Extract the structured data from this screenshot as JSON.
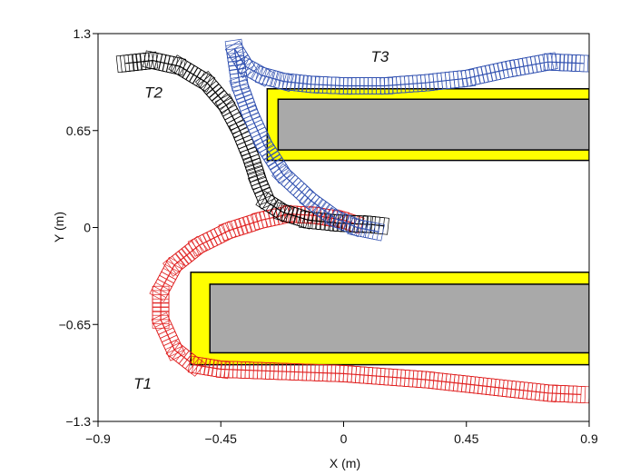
{
  "chart_data": {
    "type": "scatter",
    "title": "",
    "xlabel": "X (m)",
    "ylabel": "Y (m)",
    "xlim": [
      -0.9,
      0.9
    ],
    "ylim": [
      -1.3,
      1.3
    ],
    "xticks": [
      -0.9,
      -0.45,
      0,
      0.45,
      0.9
    ],
    "xtick_labels": [
      "−0.9",
      "−0.45",
      "0",
      "0.45",
      "0.9"
    ],
    "yticks": [
      1.3,
      0.65,
      0,
      -0.65,
      -1.3
    ],
    "ytick_labels": [
      "1.3",
      "0.65",
      "0",
      "−0.65",
      "−1.3"
    ],
    "grid": false,
    "obstacles": [
      {
        "name": "upper-obstacle",
        "outer": {
          "x": [
            -0.28,
            0.9
          ],
          "y": [
            0.45,
            0.93
          ]
        },
        "inner": {
          "x": [
            -0.24,
            0.9
          ],
          "y": [
            0.52,
            0.86
          ]
        }
      },
      {
        "name": "lower-obstacle",
        "outer": {
          "x": [
            -0.56,
            0.9
          ],
          "y": [
            -0.92,
            -0.3
          ]
        },
        "inner": {
          "x": [
            -0.49,
            0.9
          ],
          "y": [
            -0.84,
            -0.38
          ]
        }
      }
    ],
    "colors": {
      "obstacle_outer": "#ffff00",
      "obstacle_inner": "#a9a9a9",
      "outline": "#000000"
    },
    "series": [
      {
        "name": "T1",
        "label_at": {
          "x": -0.77,
          "y": -1.08
        },
        "color": "#e02020",
        "x": [
          0.87,
          0.75,
          0.6,
          0.45,
          0.3,
          0.15,
          0.0,
          -0.15,
          -0.3,
          -0.45,
          -0.55,
          -0.62,
          -0.67,
          -0.67,
          -0.62,
          -0.53,
          -0.42,
          -0.3,
          -0.2,
          -0.1,
          0.0,
          0.05
        ],
        "y": [
          -1.12,
          -1.11,
          -1.08,
          -1.05,
          -1.02,
          -1.0,
          -0.98,
          -0.97,
          -0.96,
          -0.95,
          -0.92,
          -0.82,
          -0.62,
          -0.42,
          -0.25,
          -0.12,
          -0.02,
          0.05,
          0.09,
          0.08,
          0.05,
          0.02
        ]
      },
      {
        "name": "T2",
        "label_at": {
          "x": -0.73,
          "y": 0.87
        },
        "color": "#000000",
        "x": [
          -0.8,
          -0.7,
          -0.6,
          -0.5,
          -0.43,
          -0.38,
          -0.34,
          -0.31,
          -0.28,
          -0.22,
          -0.13,
          -0.02,
          0.1,
          0.15
        ],
        "y": [
          1.1,
          1.12,
          1.08,
          0.97,
          0.82,
          0.65,
          0.47,
          0.3,
          0.17,
          0.1,
          0.05,
          0.03,
          0.02,
          0.01
        ]
      },
      {
        "name": "T3",
        "label_at": {
          "x": 0.1,
          "y": 1.11
        },
        "color": "#3050b0",
        "x": [
          0.88,
          0.75,
          0.6,
          0.45,
          0.3,
          0.15,
          0.0,
          -0.12,
          -0.22,
          -0.3,
          -0.36,
          -0.4,
          -0.38,
          -0.34,
          -0.29,
          -0.22,
          -0.12,
          -0.03,
          0.05,
          0.13
        ],
        "y": [
          1.1,
          1.11,
          1.06,
          1.0,
          0.97,
          0.95,
          0.95,
          0.96,
          0.98,
          1.02,
          1.08,
          1.2,
          0.95,
          0.75,
          0.55,
          0.35,
          0.18,
          0.06,
          0.0,
          -0.03
        ]
      }
    ]
  }
}
